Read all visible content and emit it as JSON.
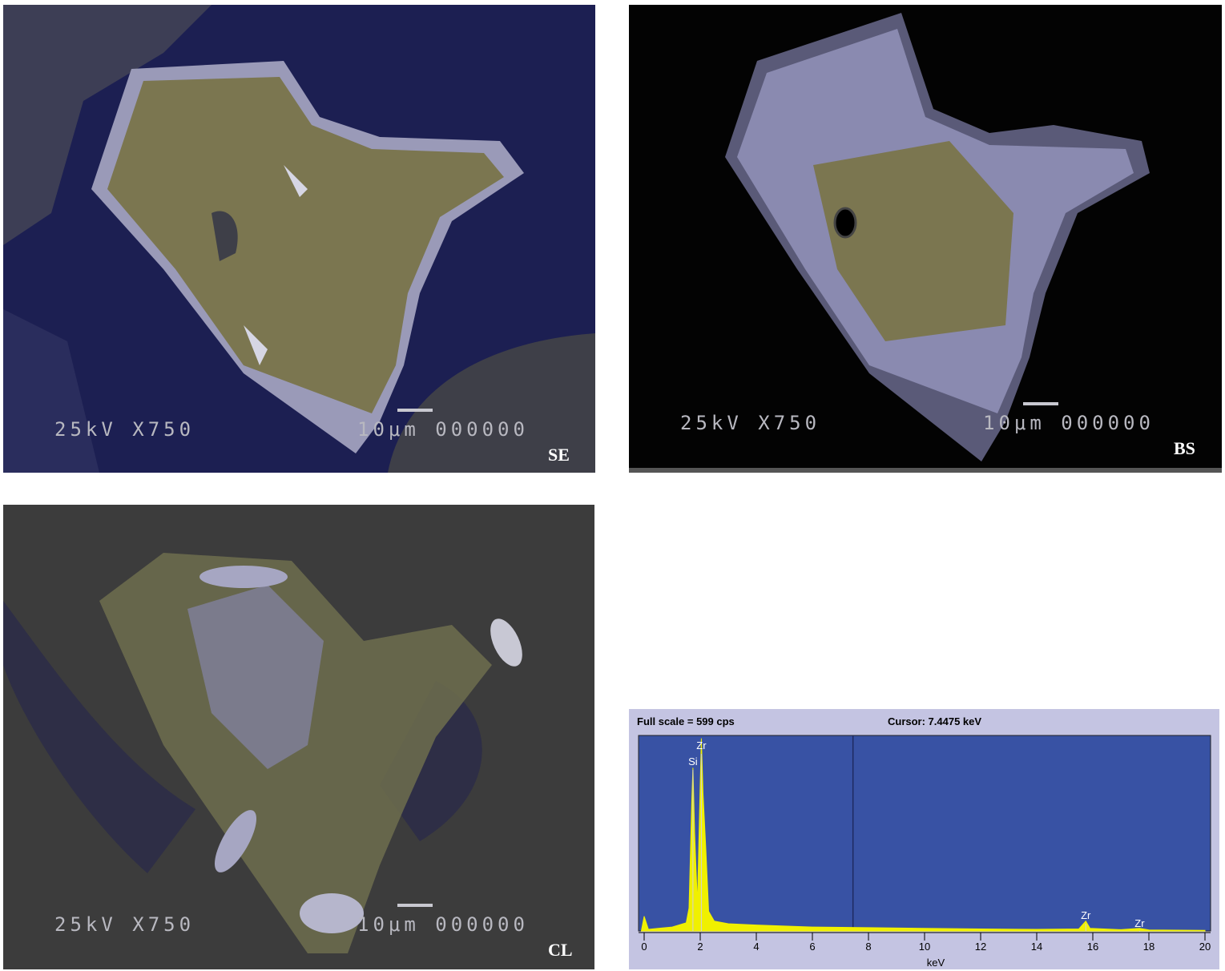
{
  "panels": [
    {
      "info_left": "25kV X750",
      "info_right": "10μm 000000",
      "label": "SE"
    },
    {
      "info_left": "25kV X750",
      "info_right": "10μm 000000",
      "label": "BS"
    },
    {
      "info_left": "25kV X750",
      "info_right": "10μm 000000",
      "label": "CL"
    }
  ],
  "chart_data": {
    "type": "area",
    "title": "Full scale = 599  cps",
    "cursor": {
      "label": "Cursor:  7.4475 keV",
      "value": 7.4475
    },
    "xlabel": "keV",
    "color": "#f0f000",
    "x": [
      -0.1,
      0.0,
      0.15,
      0.5,
      1.0,
      1.5,
      1.6,
      1.7,
      1.74,
      1.8,
      1.9,
      2.0,
      2.04,
      2.1,
      2.2,
      2.3,
      2.5,
      3.0,
      4.0,
      6.0,
      8.0,
      10.0,
      12.0,
      14.0,
      15.5,
      15.75,
      15.9,
      17.0,
      17.67,
      18.0,
      20.0
    ],
    "values": [
      0,
      45,
      5,
      8,
      12,
      25,
      70,
      400,
      500,
      300,
      80,
      450,
      590,
      420,
      250,
      60,
      30,
      22,
      18,
      12,
      10,
      8,
      6,
      5,
      6,
      30,
      8,
      4,
      8,
      3,
      2
    ],
    "annotations": [
      {
        "text": "Si",
        "x": 1.74
      },
      {
        "text": "Zr",
        "x": 2.04
      },
      {
        "text": "Zr",
        "x": 15.75
      },
      {
        "text": "Zr",
        "x": 17.67
      }
    ],
    "xlim": [
      -0.2,
      20.2
    ],
    "ylim": [
      0,
      599
    ],
    "xticks": [
      0,
      2,
      4,
      6,
      8,
      10,
      12,
      14,
      16,
      18,
      20
    ]
  }
}
